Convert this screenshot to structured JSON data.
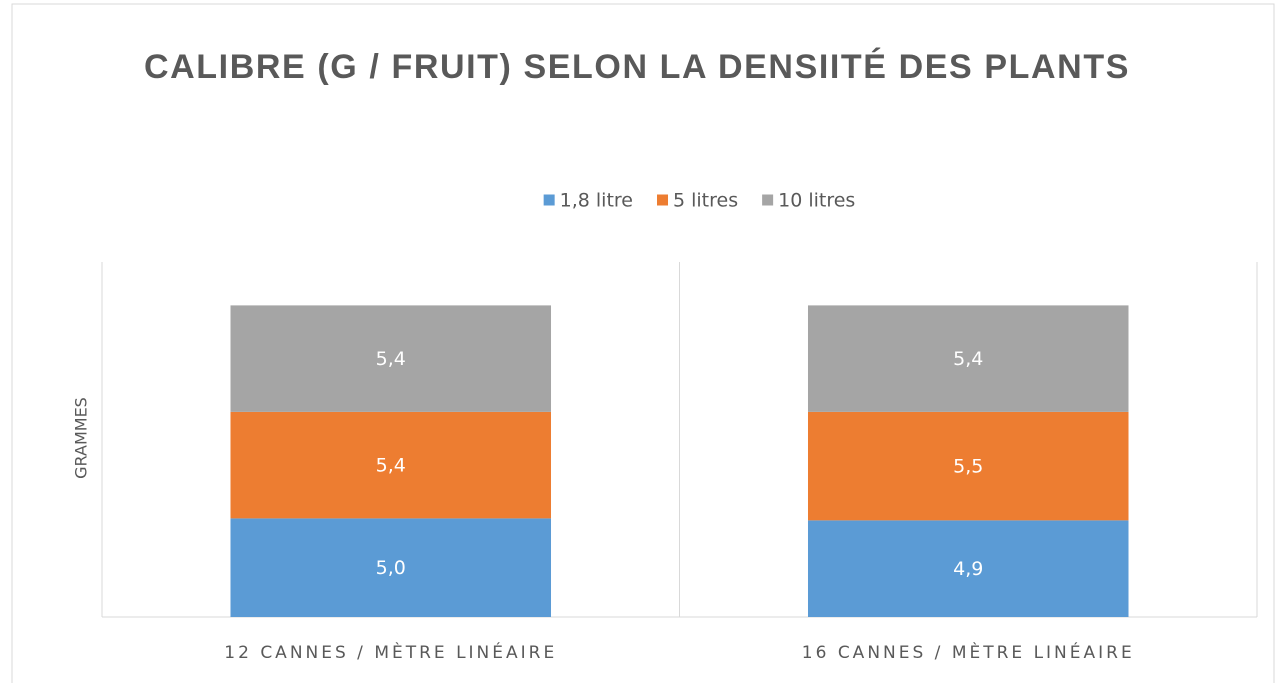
{
  "chart_data": {
    "type": "stacked_bar",
    "title": "CALIBRE (G / FRUIT) SELON LA DENSIITÉ DES PLANTS",
    "y_label": "GRAMMES",
    "categories": [
      "12 CANNES / MÈTRE LINÉAIRE",
      "16 CANNES / MÈTRE LINÉAIRE"
    ],
    "series": [
      {
        "name": "1,8 litre",
        "color": "#5b9bd5",
        "values": [
          5.0,
          4.9
        ],
        "value_labels": [
          "5,0",
          "4,9"
        ]
      },
      {
        "name": "5 litres",
        "color": "#ed7d31",
        "values": [
          5.4,
          5.5
        ],
        "value_labels": [
          "5,4",
          "5,5"
        ]
      },
      {
        "name": "10 litres",
        "color": "#a5a5a5",
        "values": [
          5.4,
          5.4
        ],
        "value_labels": [
          "5,4",
          "5,4"
        ]
      }
    ],
    "ylim": [
      0,
      18
    ],
    "legend": "top"
  }
}
